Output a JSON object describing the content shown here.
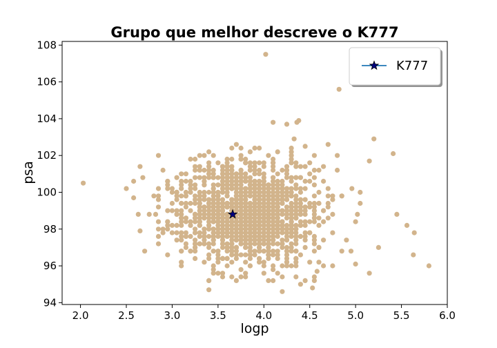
{
  "chart_data": {
    "type": "scatter",
    "title": "Grupo que melhor descreve o K777",
    "xlabel": "logp",
    "ylabel": "psa",
    "xlim": [
      1.8,
      6.0
    ],
    "ylim": [
      93.9,
      108.2
    ],
    "xticks": [
      2.0,
      2.5,
      3.0,
      3.5,
      4.0,
      4.5,
      5.0,
      5.5,
      6.0
    ],
    "xtick_labels": [
      "2.0",
      "2.5",
      "3.0",
      "3.5",
      "4.0",
      "4.5",
      "5.0",
      "5.5",
      "6.0"
    ],
    "yticks": [
      94,
      96,
      98,
      100,
      102,
      104,
      106,
      108
    ],
    "ytick_labels": [
      "94",
      "96",
      "98",
      "100",
      "102",
      "104",
      "106",
      "108"
    ],
    "grid": false,
    "legend_position": "top-right",
    "colors": {
      "group": "#d2b48c",
      "highlight_marker": "#000080",
      "legend_line": "#1f77b4"
    },
    "series": [
      {
        "marker": "circle",
        "points": [
          [
            2.03,
            100.5
          ],
          [
            4.02,
            107.5
          ],
          [
            4.82,
            105.6
          ],
          [
            5.2,
            102.9
          ],
          [
            5.41,
            102.1
          ],
          [
            5.15,
            101.7
          ],
          [
            5.8,
            96.0
          ],
          [
            5.63,
            96.6
          ],
          [
            5.64,
            97.8
          ],
          [
            5.56,
            98.2
          ],
          [
            5.25,
            97.0
          ],
          [
            5.15,
            95.6
          ],
          [
            4.1,
            103.8
          ],
          [
            4.25,
            103.7
          ],
          [
            4.38,
            103.9
          ],
          [
            4.36,
            103.8
          ],
          [
            4.33,
            102.9
          ],
          [
            4.7,
            102.6
          ],
          [
            2.5,
            100.2
          ],
          [
            2.58,
            99.7
          ],
          [
            2.68,
            100.8
          ],
          [
            2.58,
            100.6
          ],
          [
            2.65,
            97.9
          ],
          [
            2.63,
            98.8
          ],
          [
            2.7,
            96.8
          ],
          [
            2.82,
            98.8
          ],
          [
            3.4,
            94.7
          ],
          [
            4.2,
            94.6
          ],
          [
            4.4,
            95.0
          ],
          [
            4.53,
            94.8
          ],
          [
            5.45,
            98.8
          ],
          [
            4.58,
            95.7
          ],
          [
            3.7,
            102.6
          ],
          [
            4.96,
            100.2
          ],
          [
            5.0,
            96.1
          ],
          [
            4.45,
            102.5
          ],
          [
            5.02,
            98.8
          ]
        ],
        "cloud": {
          "count": 1400,
          "center": [
            3.82,
            98.9
          ],
          "spread": [
            0.38,
            1.45
          ],
          "x_grid": 0.05,
          "y_grid": 0.2
        }
      },
      {
        "name": "K777",
        "marker": "star",
        "points": [
          [
            3.66,
            98.8
          ]
        ]
      }
    ]
  }
}
